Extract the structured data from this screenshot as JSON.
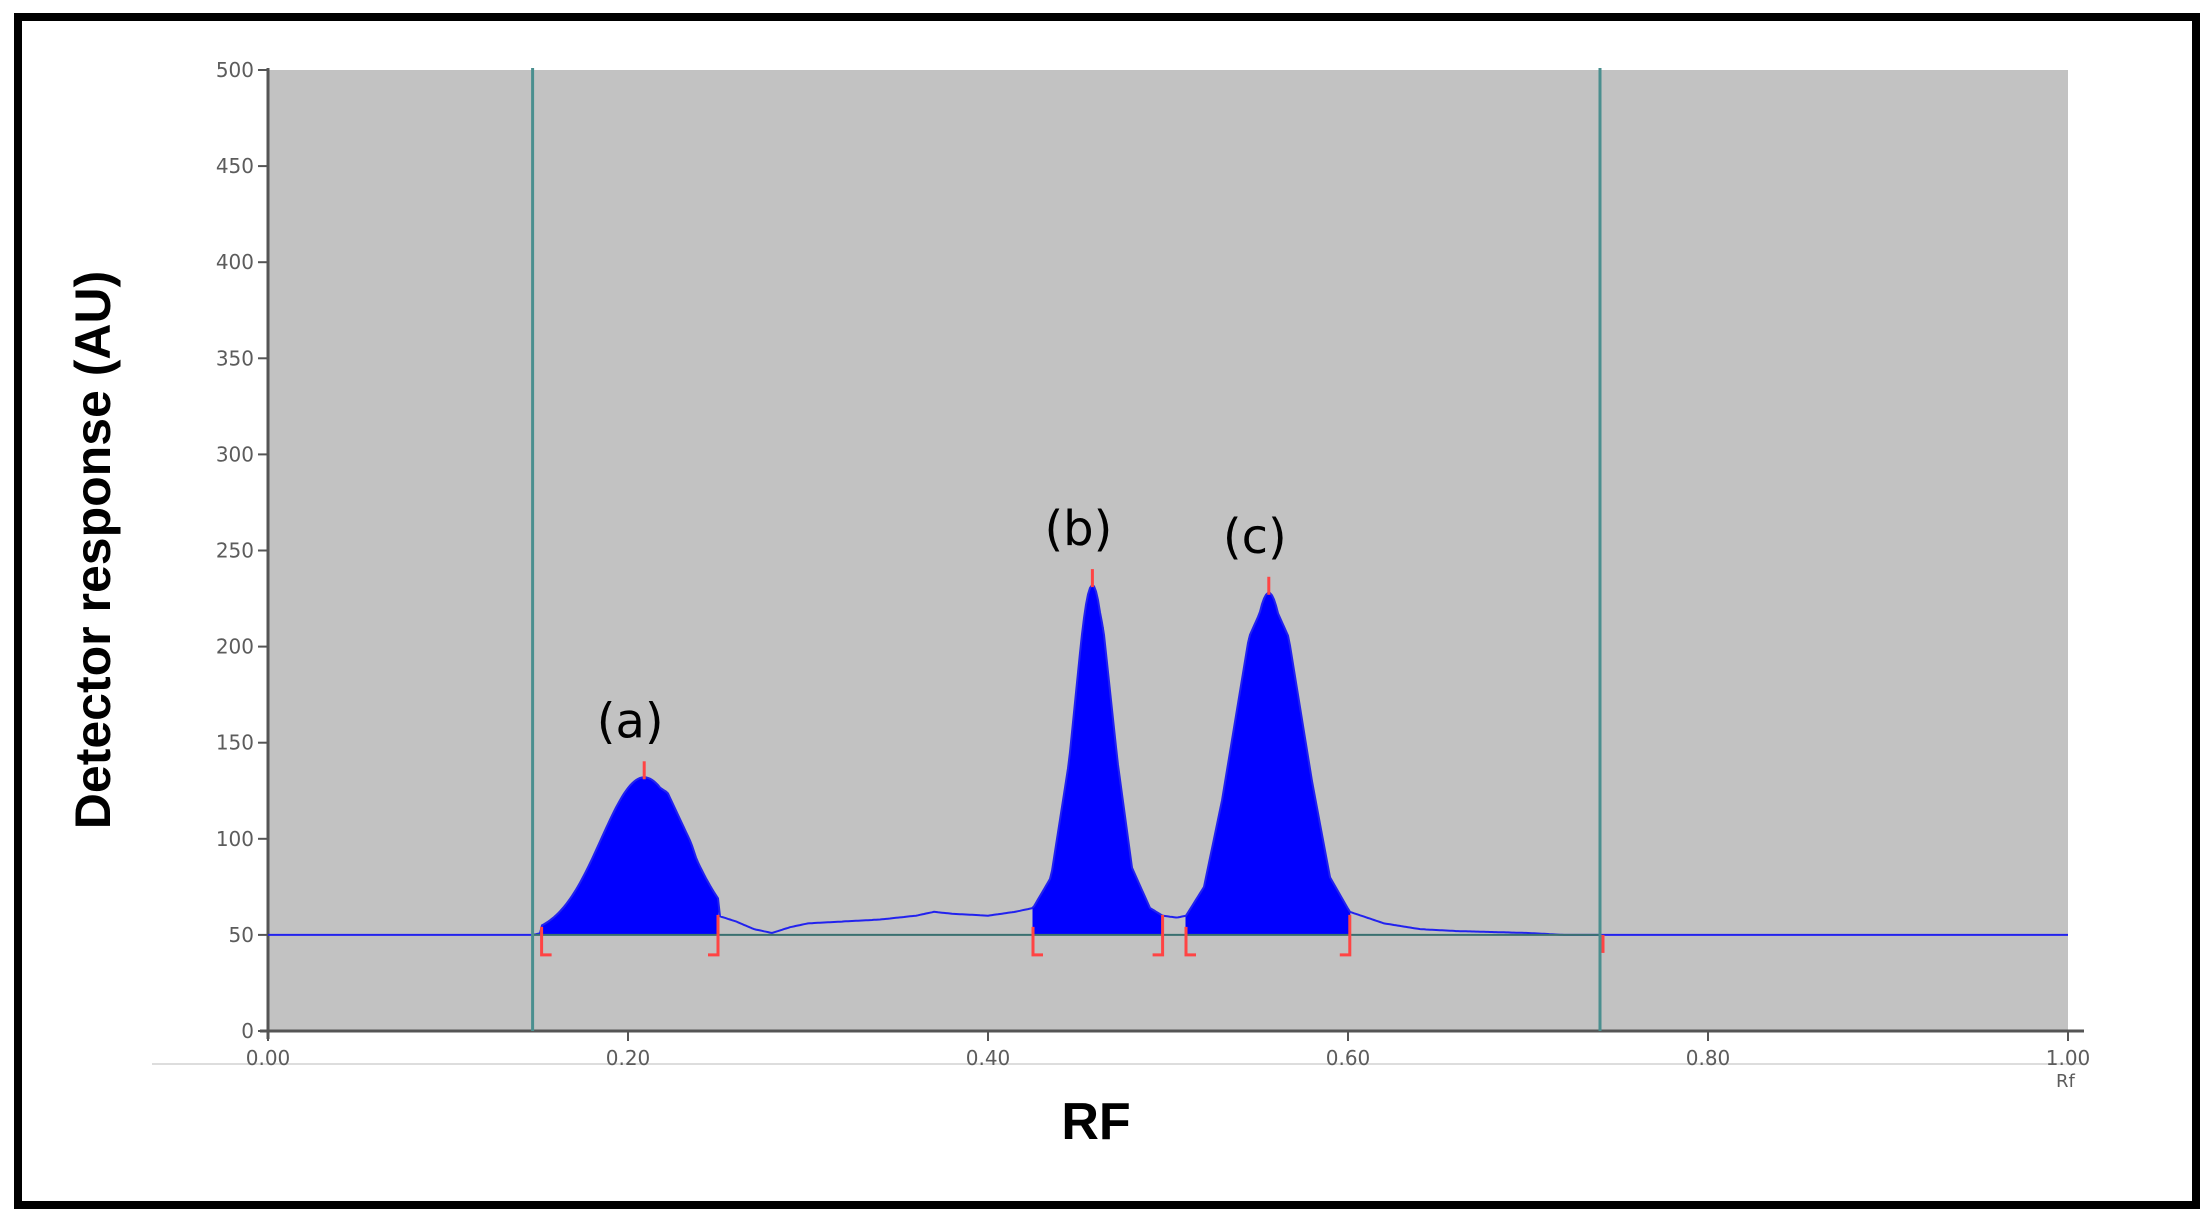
{
  "chart_data": {
    "type": "line",
    "xlabel": "RF",
    "ylabel": "Detector response (AU)",
    "x_unit": "Rf",
    "xlim": [
      0.0,
      1.0
    ],
    "ylim": [
      0,
      500
    ],
    "x_ticks": [
      "0.00",
      "0.20",
      "0.40",
      "0.60",
      "0.80",
      "1.00"
    ],
    "x_tick_values": [
      0.0,
      0.2,
      0.4,
      0.6,
      0.8,
      1.0
    ],
    "y_ticks": [
      "0",
      "50",
      "100",
      "150",
      "200",
      "250",
      "300",
      "350",
      "400",
      "450",
      "500"
    ],
    "y_tick_values": [
      0,
      50,
      100,
      150,
      200,
      250,
      300,
      350,
      400,
      450,
      500
    ],
    "baseline": 50,
    "vertical_markers": [
      0.147,
      0.74
    ],
    "grid": false,
    "background_color": "#c2c2c2",
    "trace_color": "#2222ee",
    "peak_fill_color": "#0000ff",
    "marker_color": "#ff4444",
    "cursor_color": "#4a8f8f",
    "peaks": [
      {
        "label": "(a)",
        "rf": 0.209,
        "height": 132,
        "start": 0.152,
        "end": 0.25,
        "sigma": 0.024
      },
      {
        "label": "(b)",
        "rf": 0.458,
        "height": 232,
        "start": 0.425,
        "end": 0.497,
        "sigma": 0.0105
      },
      {
        "label": "(c)",
        "rf": 0.556,
        "height": 228,
        "start": 0.51,
        "end": 0.601,
        "sigma": 0.0145
      }
    ],
    "trace": [
      [
        0.0,
        50
      ],
      [
        0.147,
        50
      ],
      [
        0.152,
        51
      ],
      [
        0.165,
        62
      ],
      [
        0.18,
        88
      ],
      [
        0.195,
        116
      ],
      [
        0.209,
        132
      ],
      [
        0.222,
        124
      ],
      [
        0.235,
        98
      ],
      [
        0.245,
        70
      ],
      [
        0.25,
        60
      ],
      [
        0.26,
        57
      ],
      [
        0.27,
        53
      ],
      [
        0.28,
        51
      ],
      [
        0.29,
        54
      ],
      [
        0.3,
        56
      ],
      [
        0.32,
        57
      ],
      [
        0.34,
        58
      ],
      [
        0.36,
        60
      ],
      [
        0.37,
        62
      ],
      [
        0.38,
        61
      ],
      [
        0.4,
        60
      ],
      [
        0.415,
        62
      ],
      [
        0.425,
        64
      ],
      [
        0.435,
        80
      ],
      [
        0.445,
        140
      ],
      [
        0.452,
        205
      ],
      [
        0.458,
        232
      ],
      [
        0.464,
        210
      ],
      [
        0.472,
        140
      ],
      [
        0.48,
        85
      ],
      [
        0.49,
        64
      ],
      [
        0.497,
        60
      ],
      [
        0.505,
        59
      ],
      [
        0.51,
        60
      ],
      [
        0.52,
        75
      ],
      [
        0.53,
        120
      ],
      [
        0.545,
        205
      ],
      [
        0.556,
        228
      ],
      [
        0.567,
        205
      ],
      [
        0.58,
        130
      ],
      [
        0.59,
        80
      ],
      [
        0.601,
        62
      ],
      [
        0.62,
        56
      ],
      [
        0.64,
        53
      ],
      [
        0.66,
        52
      ],
      [
        0.7,
        51
      ],
      [
        0.72,
        50
      ],
      [
        0.74,
        50
      ],
      [
        1.0,
        50
      ]
    ]
  }
}
